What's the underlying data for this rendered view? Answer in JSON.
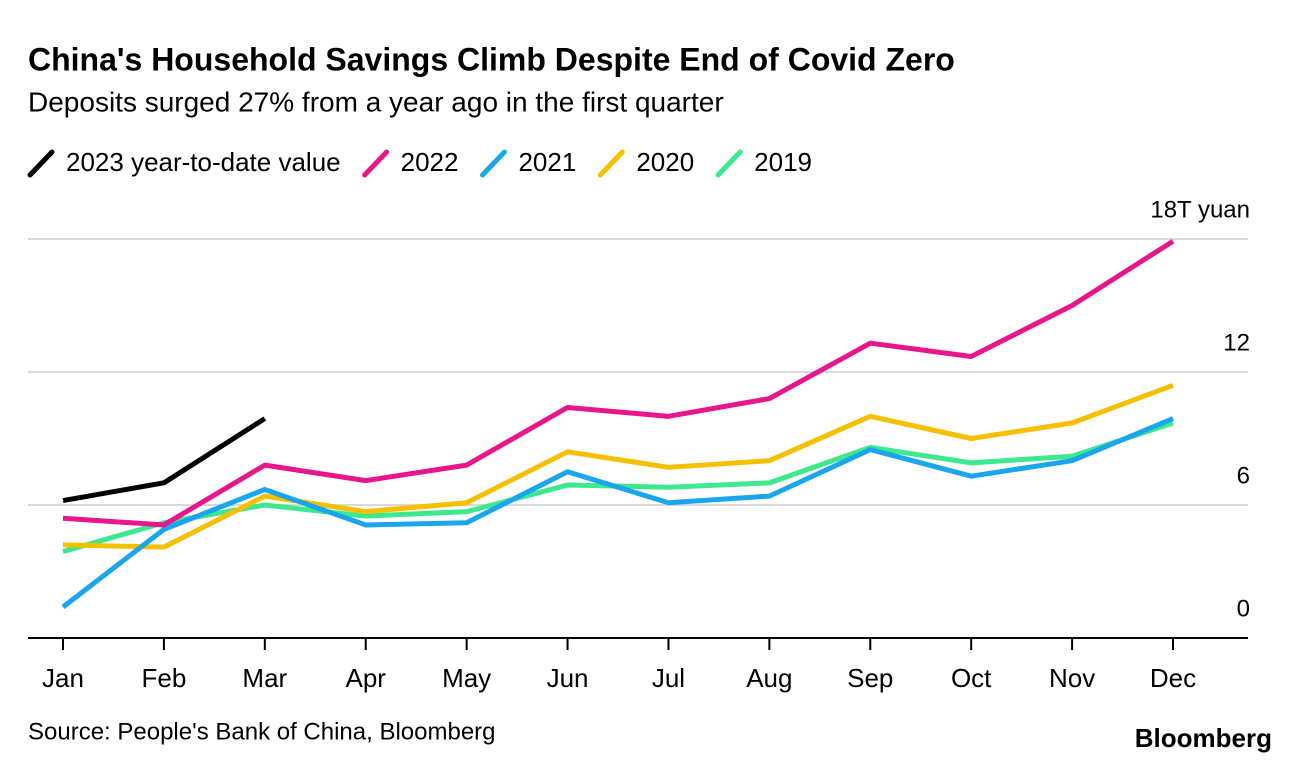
{
  "chart_data": {
    "type": "line",
    "title": "China's Household Savings Climb Despite End of Covid Zero",
    "subtitle": "Deposits surged 27% from a year ago in the first quarter",
    "source": "Source: People's Bank of China, Bloomberg",
    "brand": "Bloomberg",
    "categories": [
      "Jan",
      "Feb",
      "Mar",
      "Apr",
      "May",
      "Jun",
      "Jul",
      "Aug",
      "Sep",
      "Oct",
      "Nov",
      "Dec"
    ],
    "series": [
      {
        "name": "2023 year-to-date value",
        "color": "#000000",
        "values": [
          6.2,
          7.0,
          9.9,
          null,
          null,
          null,
          null,
          null,
          null,
          null,
          null,
          null
        ]
      },
      {
        "name": "2022",
        "color": "#e8168b",
        "values": [
          5.4,
          5.1,
          7.8,
          7.1,
          7.8,
          10.4,
          10.0,
          10.8,
          13.3,
          12.7,
          15.0,
          17.9
        ]
      },
      {
        "name": "2021",
        "color": "#1aa6ec",
        "values": [
          1.4,
          4.9,
          6.7,
          5.1,
          5.2,
          7.5,
          6.1,
          6.4,
          8.5,
          7.3,
          8.0,
          9.9
        ]
      },
      {
        "name": "2020",
        "color": "#f5c000",
        "values": [
          4.2,
          4.1,
          6.4,
          5.7,
          6.1,
          8.4,
          7.7,
          8.0,
          10.0,
          9.0,
          9.7,
          11.4
        ]
      },
      {
        "name": "2019",
        "color": "#3ee88e",
        "values": [
          3.9,
          5.2,
          6.0,
          5.5,
          5.7,
          6.9,
          6.8,
          7.0,
          8.6,
          7.9,
          8.2,
          9.7
        ]
      }
    ],
    "ylim": [
      0,
      18
    ],
    "yticks": [
      0,
      6,
      12,
      {
        "value": 18,
        "label": "18T yuan"
      }
    ],
    "grid": true
  }
}
